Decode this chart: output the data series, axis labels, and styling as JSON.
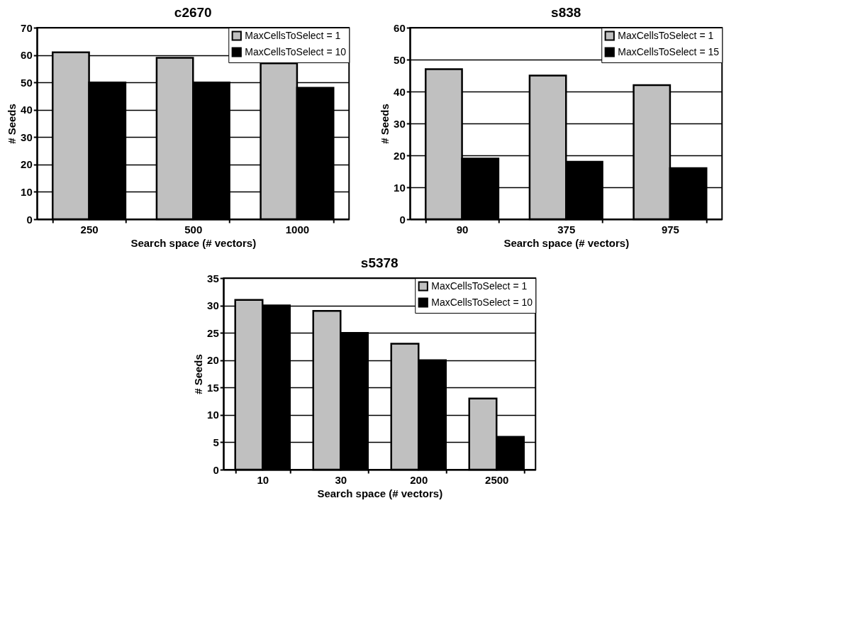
{
  "chart_data": [
    {
      "type": "bar",
      "title": "c2670",
      "xlabel": "Search space (# vectors)",
      "ylabel": "# Seeds",
      "categories": [
        "250",
        "500",
        "1000"
      ],
      "series": [
        {
          "name": "MaxCellsToSelect = 1",
          "color": "#c0c0c0",
          "values": [
            61,
            59,
            57
          ]
        },
        {
          "name": "MaxCellsToSelect = 10",
          "color": "#000000",
          "values": [
            50,
            50,
            48
          ]
        }
      ],
      "ylim": [
        0,
        70
      ],
      "yticks": [
        0,
        10,
        20,
        30,
        40,
        50,
        60,
        70
      ],
      "grid": "y",
      "legend": "top right"
    },
    {
      "type": "bar",
      "title": "s838",
      "xlabel": "Search space (# vectors)",
      "ylabel": "# Seeds",
      "categories": [
        "90",
        "375",
        "975"
      ],
      "series": [
        {
          "name": "MaxCellsToSelect = 1",
          "color": "#c0c0c0",
          "values": [
            47,
            45,
            42
          ]
        },
        {
          "name": "MaxCellsToSelect = 15",
          "color": "#000000",
          "values": [
            19,
            18,
            16
          ]
        }
      ],
      "ylim": [
        0,
        60
      ],
      "yticks": [
        0,
        10,
        20,
        30,
        40,
        50,
        60
      ],
      "grid": "y",
      "legend": "top right"
    },
    {
      "type": "bar",
      "title": "s5378",
      "xlabel": "Search space (# vectors)",
      "ylabel": "# Seeds",
      "categories": [
        "10",
        "30",
        "200",
        "2500"
      ],
      "series": [
        {
          "name": "MaxCellsToSelect = 1",
          "color": "#c0c0c0",
          "values": [
            31,
            29,
            23,
            13
          ]
        },
        {
          "name": "MaxCellsToSelect = 10",
          "color": "#000000",
          "values": [
            30,
            25,
            20,
            6
          ]
        }
      ],
      "ylim": [
        0,
        35
      ],
      "yticks": [
        0,
        5,
        10,
        15,
        20,
        25,
        30,
        35
      ],
      "grid": "y",
      "legend": "top right"
    }
  ]
}
